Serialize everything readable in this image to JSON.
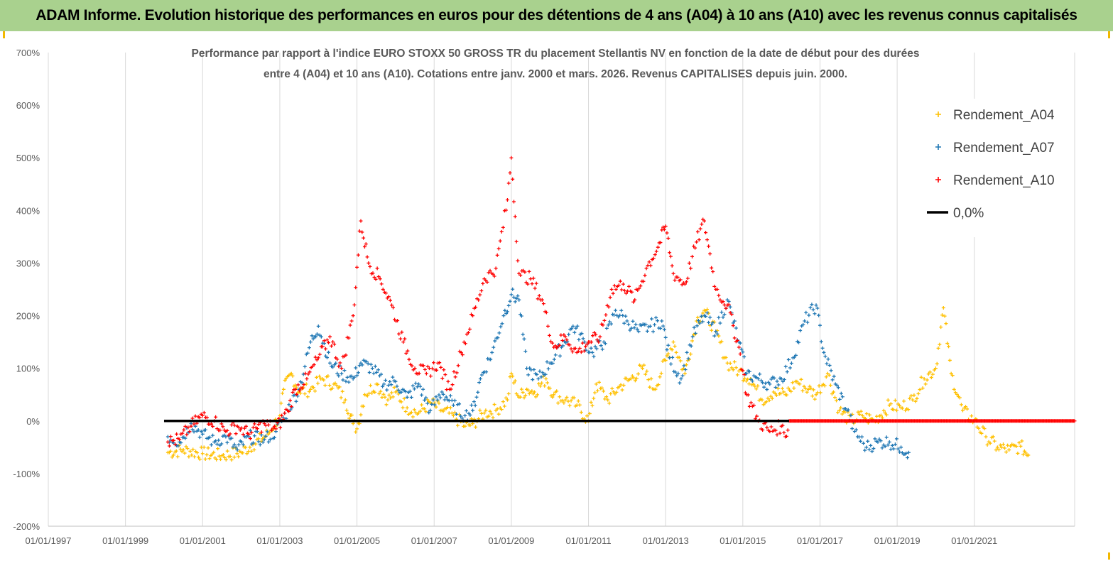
{
  "header": {
    "title": "ADAM Informe. Evolution historique des performances en euros pour des détentions de 4 ans (A04) à 10 ans (A10) avec les revenus connus capitalisés",
    "background": "#a9d18e"
  },
  "chart_data": {
    "type": "scatter",
    "title": "Performance par rapport à l'indice EURO STOXX 50 GROSS TR  du placement Stellantis NV en fonction de la date de début pour des durées",
    "subtitle": "entre 4 (A04) et 10 ans (A10). Cotations entre janv. 2000 et mars. 2026. Revenus CAPITALISES depuis juin. 2000.",
    "xlabel": "",
    "ylabel": "",
    "x_ticks": [
      "01/01/1997",
      "01/01/1999",
      "01/01/2001",
      "01/01/2003",
      "01/01/2005",
      "01/01/2007",
      "01/01/2009",
      "01/01/2011",
      "01/01/2013",
      "01/01/2015",
      "01/01/2017",
      "01/01/2019",
      "01/01/2021"
    ],
    "x_range_years": [
      1997,
      2023.6
    ],
    "y_ticks": [
      "700%",
      "600%",
      "500%",
      "400%",
      "300%",
      "200%",
      "100%",
      "0%",
      "-100%",
      "-200%"
    ],
    "ylim": [
      -200,
      700
    ],
    "grid": "vertical",
    "legend_position": "top-right",
    "series": [
      {
        "name": "Rendement_A04",
        "color": "#ffc000",
        "marker": "+",
        "points": [
          [
            2000.1,
            -60
          ],
          [
            2000.5,
            -55
          ],
          [
            2001.0,
            -62
          ],
          [
            2001.5,
            -66
          ],
          [
            2002.0,
            -60
          ],
          [
            2002.3,
            -45
          ],
          [
            2002.7,
            -25
          ],
          [
            2003.0,
            10
          ],
          [
            2003.1,
            60
          ],
          [
            2003.3,
            90
          ],
          [
            2003.5,
            55
          ],
          [
            2003.8,
            60
          ],
          [
            2004.1,
            80
          ],
          [
            2004.4,
            70
          ],
          [
            2004.7,
            40
          ],
          [
            2004.9,
            -5
          ],
          [
            2005.0,
            -15
          ],
          [
            2005.2,
            50
          ],
          [
            2005.5,
            70
          ],
          [
            2005.8,
            40
          ],
          [
            2006.0,
            55
          ],
          [
            2006.3,
            25
          ],
          [
            2006.6,
            15
          ],
          [
            2006.9,
            35
          ],
          [
            2007.2,
            20
          ],
          [
            2007.5,
            10
          ],
          [
            2007.8,
            -10
          ],
          [
            2008.0,
            -5
          ],
          [
            2008.3,
            15
          ],
          [
            2008.6,
            20
          ],
          [
            2008.9,
            40
          ],
          [
            2009.0,
            90
          ],
          [
            2009.2,
            45
          ],
          [
            2009.4,
            60
          ],
          [
            2009.6,
            55
          ],
          [
            2009.9,
            80
          ],
          [
            2010.1,
            50
          ],
          [
            2010.4,
            40
          ],
          [
            2010.7,
            30
          ],
          [
            2011.0,
            0
          ],
          [
            2011.2,
            70
          ],
          [
            2011.5,
            40
          ],
          [
            2011.8,
            65
          ],
          [
            2012.1,
            80
          ],
          [
            2012.4,
            100
          ],
          [
            2012.7,
            60
          ],
          [
            2013.0,
            115
          ],
          [
            2013.2,
            150
          ],
          [
            2013.5,
            90
          ],
          [
            2013.8,
            190
          ],
          [
            2014.0,
            210
          ],
          [
            2014.3,
            170
          ],
          [
            2014.6,
            110
          ],
          [
            2014.9,
            95
          ],
          [
            2015.2,
            80
          ],
          [
            2015.5,
            40
          ],
          [
            2015.8,
            55
          ],
          [
            2016.1,
            50
          ],
          [
            2016.4,
            75
          ],
          [
            2016.7,
            60
          ],
          [
            2016.9,
            50
          ],
          [
            2017.2,
            90
          ],
          [
            2017.5,
            20
          ],
          [
            2017.8,
            0
          ],
          [
            2018.1,
            10
          ],
          [
            2018.4,
            0
          ],
          [
            2018.8,
            30
          ],
          [
            2019.1,
            25
          ],
          [
            2019.4,
            40
          ],
          [
            2019.7,
            80
          ],
          [
            2020.0,
            100
          ],
          [
            2020.2,
            215
          ],
          [
            2020.4,
            90
          ],
          [
            2020.7,
            20
          ],
          [
            2021.0,
            0
          ],
          [
            2021.3,
            -30
          ],
          [
            2021.6,
            -50
          ],
          [
            2021.9,
            -55
          ],
          [
            2022.2,
            -48
          ],
          [
            2022.4,
            -65
          ]
        ]
      },
      {
        "name": "Rendement_A07",
        "color": "#1f77b4",
        "marker": "+",
        "points": [
          [
            2000.1,
            -30
          ],
          [
            2000.4,
            -40
          ],
          [
            2000.7,
            -5
          ],
          [
            2001.0,
            -25
          ],
          [
            2001.3,
            -40
          ],
          [
            2001.6,
            -30
          ],
          [
            2001.9,
            -55
          ],
          [
            2002.2,
            -30
          ],
          [
            2002.6,
            -35
          ],
          [
            2002.9,
            -20
          ],
          [
            2003.2,
            20
          ],
          [
            2003.5,
            60
          ],
          [
            2003.8,
            150
          ],
          [
            2004.0,
            180
          ],
          [
            2004.3,
            110
          ],
          [
            2004.6,
            90
          ],
          [
            2004.9,
            80
          ],
          [
            2005.1,
            110
          ],
          [
            2005.4,
            100
          ],
          [
            2005.7,
            70
          ],
          [
            2006.0,
            75
          ],
          [
            2006.3,
            45
          ],
          [
            2006.6,
            70
          ],
          [
            2006.9,
            20
          ],
          [
            2007.2,
            55
          ],
          [
            2007.5,
            30
          ],
          [
            2007.8,
            10
          ],
          [
            2008.0,
            20
          ],
          [
            2008.2,
            80
          ],
          [
            2008.5,
            130
          ],
          [
            2008.8,
            200
          ],
          [
            2009.0,
            240
          ],
          [
            2009.2,
            230
          ],
          [
            2009.4,
            100
          ],
          [
            2009.7,
            80
          ],
          [
            2010.0,
            110
          ],
          [
            2010.3,
            140
          ],
          [
            2010.6,
            180
          ],
          [
            2010.9,
            150
          ],
          [
            2011.1,
            130
          ],
          [
            2011.4,
            150
          ],
          [
            2011.7,
            210
          ],
          [
            2012.0,
            190
          ],
          [
            2012.3,
            170
          ],
          [
            2012.6,
            180
          ],
          [
            2012.9,
            190
          ],
          [
            2013.1,
            120
          ],
          [
            2013.4,
            80
          ],
          [
            2013.7,
            160
          ],
          [
            2014.0,
            200
          ],
          [
            2014.3,
            170
          ],
          [
            2014.6,
            230
          ],
          [
            2014.9,
            150
          ],
          [
            2015.1,
            90
          ],
          [
            2015.4,
            80
          ],
          [
            2015.7,
            70
          ],
          [
            2016.0,
            80
          ],
          [
            2016.3,
            120
          ],
          [
            2016.6,
            190
          ],
          [
            2016.9,
            220
          ],
          [
            2017.1,
            130
          ],
          [
            2017.4,
            70
          ],
          [
            2017.7,
            20
          ],
          [
            2017.9,
            -20
          ],
          [
            2018.2,
            -50
          ],
          [
            2018.5,
            -40
          ],
          [
            2018.8,
            -40
          ],
          [
            2019.1,
            -50
          ],
          [
            2019.3,
            -60
          ]
        ]
      },
      {
        "name": "Rendement_A10",
        "color": "#ff0000",
        "marker": "+",
        "points": [
          [
            2000.1,
            -40
          ],
          [
            2000.4,
            -35
          ],
          [
            2000.7,
            -10
          ],
          [
            2001.0,
            10
          ],
          [
            2001.3,
            0
          ],
          [
            2001.6,
            -20
          ],
          [
            2001.9,
            -10
          ],
          [
            2002.2,
            -25
          ],
          [
            2002.6,
            -5
          ],
          [
            2002.9,
            -15
          ],
          [
            2003.2,
            20
          ],
          [
            2003.4,
            60
          ],
          [
            2003.7,
            80
          ],
          [
            2004.0,
            120
          ],
          [
            2004.3,
            160
          ],
          [
            2004.6,
            100
          ],
          [
            2004.9,
            200
          ],
          [
            2005.1,
            380
          ],
          [
            2005.3,
            300
          ],
          [
            2005.6,
            270
          ],
          [
            2005.9,
            220
          ],
          [
            2006.2,
            150
          ],
          [
            2006.5,
            100
          ],
          [
            2006.8,
            90
          ],
          [
            2007.1,
            110
          ],
          [
            2007.4,
            60
          ],
          [
            2007.7,
            130
          ],
          [
            2008.0,
            200
          ],
          [
            2008.3,
            270
          ],
          [
            2008.6,
            290
          ],
          [
            2008.9,
            420
          ],
          [
            2009.0,
            500
          ],
          [
            2009.2,
            280
          ],
          [
            2009.5,
            270
          ],
          [
            2009.8,
            230
          ],
          [
            2010.1,
            140
          ],
          [
            2010.4,
            160
          ],
          [
            2010.7,
            130
          ],
          [
            2011.0,
            150
          ],
          [
            2011.3,
            160
          ],
          [
            2011.6,
            250
          ],
          [
            2011.9,
            260
          ],
          [
            2012.2,
            230
          ],
          [
            2012.5,
            290
          ],
          [
            2012.8,
            330
          ],
          [
            2013.0,
            370
          ],
          [
            2013.2,
            280
          ],
          [
            2013.5,
            260
          ],
          [
            2013.8,
            340
          ],
          [
            2014.0,
            380
          ],
          [
            2014.3,
            250
          ],
          [
            2014.6,
            220
          ],
          [
            2014.9,
            140
          ],
          [
            2015.1,
            50
          ],
          [
            2015.4,
            0
          ],
          [
            2015.7,
            -20
          ],
          [
            2016.0,
            -10
          ],
          [
            2016.1,
            -30
          ],
          [
            2016.2,
            0
          ],
          [
            2023.6,
            0
          ]
        ]
      },
      {
        "name": "0,0%",
        "color": "#000000",
        "line": true,
        "points": [
          [
            2000.0,
            0
          ],
          [
            2016.2,
            0
          ]
        ]
      }
    ]
  }
}
